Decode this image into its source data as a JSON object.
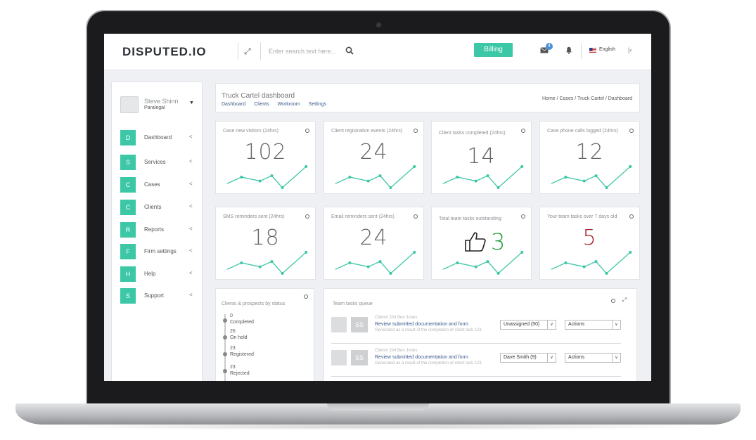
{
  "brand": {
    "name": "DISPUTED.IO"
  },
  "topbar": {
    "search_placeholder": "Enter search text here...",
    "billing_label": "Billing",
    "mail_count": "4",
    "language": "English"
  },
  "user": {
    "name": "Steve Shinn",
    "role": "Paralegal"
  },
  "sidebar": {
    "items": [
      {
        "letter": "D",
        "label": "Dashboard"
      },
      {
        "letter": "S",
        "label": "Services"
      },
      {
        "letter": "C",
        "label": "Cases"
      },
      {
        "letter": "C",
        "label": "Clients"
      },
      {
        "letter": "R",
        "label": "Reports"
      },
      {
        "letter": "F",
        "label": "Firm settings"
      },
      {
        "letter": "H",
        "label": "Help"
      },
      {
        "letter": "S",
        "label": "Support"
      }
    ]
  },
  "header": {
    "title": "Truck Cartel dashboard",
    "subnav": [
      "Dashboard",
      "Clients",
      "Workroom",
      "Settings"
    ],
    "breadcrumb": "Home / Cases / Truck Cartel / Dashboard"
  },
  "cards": [
    {
      "title": "Case new visitors (24hrs)",
      "value": "102"
    },
    {
      "title": "Client registration events (24hrs)",
      "value": "24"
    },
    {
      "title": "Client tasks completed (24hrs)",
      "value": "14"
    },
    {
      "title": "Case phone calls logged (24hrs)",
      "value": "12"
    },
    {
      "title": "SMS reminders sent (24hrs)",
      "value": "18"
    },
    {
      "title": "Email reminders sent (24hrs)",
      "value": "24"
    },
    {
      "title": "Total team tasks outstanding",
      "value": "3"
    },
    {
      "title": "Your team tasks over 7 days old",
      "value": "5"
    }
  ],
  "colors": {
    "accent": "#3cc7a6",
    "good": "#1f9e3a",
    "bad": "#a3242f"
  },
  "status_panel": {
    "title": "Clients & prospects by status",
    "items": [
      {
        "count": "0",
        "label": "Completed"
      },
      {
        "count": "26",
        "label": "On hold"
      },
      {
        "count": "23",
        "label": "Registered"
      },
      {
        "count": "23",
        "label": "Rejected"
      }
    ]
  },
  "queue": {
    "title": "Team tasks queue",
    "rows": [
      {
        "avatar": "SS",
        "client": "Client# 204 Ben Jones",
        "task": "Review submitted documentation and form",
        "note": "Generated as a result of the completion of client task 123",
        "assignee": "Unassigned (50)",
        "actions": "Actions"
      },
      {
        "avatar": "SS",
        "client": "Client# 204 Ben Jones",
        "task": "Review submitted documentation and form",
        "note": "Generated as a result of the completion of client task 123",
        "assignee": "Dave Smith (9)",
        "actions": "Actions"
      }
    ]
  }
}
